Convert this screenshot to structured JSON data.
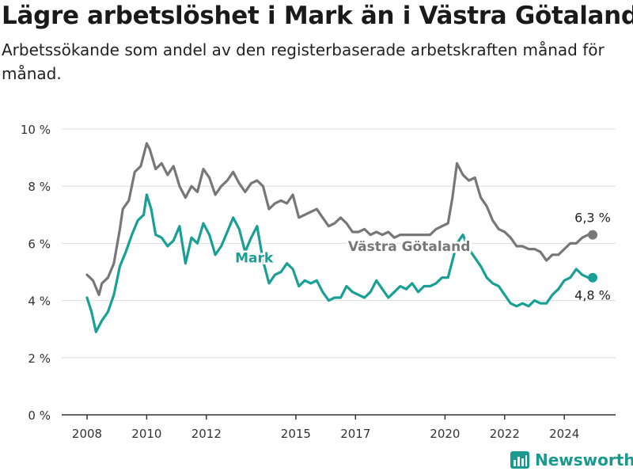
{
  "title": "Lägre arbetslöshet i Mark än i Västra Götaland",
  "subtitle": "Arbetssökande som andel av den registerbaserade arbetskraften månad för månad.",
  "brand": "Newsworthy",
  "colors": {
    "mark": "#18a096",
    "vastra": "#777777",
    "grid": "#dddddd",
    "axis": "#333333"
  },
  "chart_data": {
    "type": "line",
    "ylim": [
      0,
      10
    ],
    "xlim": [
      2008,
      2025.6
    ],
    "y_ticks": [
      0,
      2,
      4,
      6,
      8,
      10
    ],
    "y_tick_labels": [
      "0 %",
      "2 %",
      "4 %",
      "6 %",
      "8 %",
      "10 %"
    ],
    "x_ticks": [
      2008,
      2010,
      2012,
      2015,
      2017,
      2020,
      2022,
      2024
    ],
    "x_tick_labels": [
      "2008",
      "2010",
      "2012",
      "2015",
      "2017",
      "2020",
      "2022",
      "2024"
    ],
    "grid": true,
    "series": [
      {
        "name": "Västra Götaland",
        "color": "#777777",
        "end_label": "6,3 %",
        "x": [
          2008.0,
          2008.2,
          2008.4,
          2008.5,
          2008.7,
          2008.9,
          2009.1,
          2009.2,
          2009.4,
          2009.6,
          2009.8,
          2010.0,
          2010.1,
          2010.3,
          2010.5,
          2010.7,
          2010.9,
          2011.1,
          2011.3,
          2011.5,
          2011.7,
          2011.9,
          2012.1,
          2012.3,
          2012.5,
          2012.7,
          2012.9,
          2013.1,
          2013.3,
          2013.5,
          2013.7,
          2013.9,
          2014.1,
          2014.3,
          2014.5,
          2014.7,
          2014.9,
          2015.1,
          2015.3,
          2015.5,
          2015.7,
          2015.9,
          2016.1,
          2016.3,
          2016.5,
          2016.7,
          2016.9,
          2017.1,
          2017.3,
          2017.5,
          2017.7,
          2017.9,
          2018.1,
          2018.3,
          2018.5,
          2018.7,
          2018.9,
          2019.1,
          2019.3,
          2019.5,
          2019.7,
          2019.9,
          2020.1,
          2020.25,
          2020.4,
          2020.6,
          2020.8,
          2021.0,
          2021.2,
          2021.4,
          2021.6,
          2021.8,
          2022.0,
          2022.2,
          2022.4,
          2022.6,
          2022.8,
          2023.0,
          2023.2,
          2023.4,
          2023.6,
          2023.8,
          2024.0,
          2024.2,
          2024.4,
          2024.6,
          2024.8,
          2024.95
        ],
        "y": [
          4.9,
          4.7,
          4.2,
          4.6,
          4.8,
          5.3,
          6.5,
          7.2,
          7.5,
          8.5,
          8.7,
          9.5,
          9.3,
          8.6,
          8.8,
          8.4,
          8.7,
          8.0,
          7.6,
          8.0,
          7.8,
          8.6,
          8.3,
          7.7,
          8.0,
          8.2,
          8.5,
          8.1,
          7.8,
          8.1,
          8.2,
          8.0,
          7.2,
          7.4,
          7.5,
          7.4,
          7.7,
          6.9,
          7.0,
          7.1,
          7.2,
          6.9,
          6.6,
          6.7,
          6.9,
          6.7,
          6.4,
          6.4,
          6.5,
          6.3,
          6.4,
          6.3,
          6.4,
          6.2,
          6.3,
          6.3,
          6.3,
          6.3,
          6.3,
          6.3,
          6.5,
          6.6,
          6.7,
          7.6,
          8.8,
          8.4,
          8.2,
          8.3,
          7.6,
          7.3,
          6.8,
          6.5,
          6.4,
          6.2,
          5.9,
          5.9,
          5.8,
          5.8,
          5.7,
          5.4,
          5.6,
          5.6,
          5.8,
          6.0,
          6.0,
          6.2,
          6.3,
          6.3
        ]
      },
      {
        "name": "Mark",
        "color": "#18a096",
        "end_label": "4,8 %",
        "x": [
          2008.0,
          2008.15,
          2008.3,
          2008.5,
          2008.7,
          2008.9,
          2009.1,
          2009.3,
          2009.5,
          2009.7,
          2009.9,
          2010.0,
          2010.15,
          2010.3,
          2010.5,
          2010.7,
          2010.9,
          2011.1,
          2011.3,
          2011.5,
          2011.7,
          2011.9,
          2012.1,
          2012.3,
          2012.5,
          2012.7,
          2012.9,
          2013.1,
          2013.3,
          2013.5,
          2013.7,
          2013.9,
          2014.1,
          2014.3,
          2014.5,
          2014.7,
          2014.9,
          2015.1,
          2015.3,
          2015.5,
          2015.7,
          2015.9,
          2016.1,
          2016.3,
          2016.5,
          2016.7,
          2016.9,
          2017.1,
          2017.3,
          2017.5,
          2017.7,
          2017.9,
          2018.1,
          2018.3,
          2018.5,
          2018.7,
          2018.9,
          2019.1,
          2019.3,
          2019.5,
          2019.7,
          2019.9,
          2020.1,
          2020.25,
          2020.4,
          2020.6,
          2020.8,
          2021.0,
          2021.2,
          2021.4,
          2021.6,
          2021.8,
          2022.0,
          2022.2,
          2022.4,
          2022.6,
          2022.8,
          2023.0,
          2023.2,
          2023.4,
          2023.6,
          2023.8,
          2024.0,
          2024.2,
          2024.4,
          2024.6,
          2024.8,
          2024.95
        ],
        "y": [
          4.1,
          3.6,
          2.9,
          3.3,
          3.6,
          4.2,
          5.2,
          5.7,
          6.3,
          6.8,
          7.0,
          7.7,
          7.2,
          6.3,
          6.2,
          5.9,
          6.1,
          6.6,
          5.3,
          6.2,
          6.0,
          6.7,
          6.3,
          5.6,
          5.9,
          6.4,
          6.9,
          6.5,
          5.7,
          6.2,
          6.6,
          5.4,
          4.6,
          4.9,
          5.0,
          5.3,
          5.1,
          4.5,
          4.7,
          4.6,
          4.7,
          4.3,
          4.0,
          4.1,
          4.1,
          4.5,
          4.3,
          4.2,
          4.1,
          4.3,
          4.7,
          4.4,
          4.1,
          4.3,
          4.5,
          4.4,
          4.6,
          4.3,
          4.5,
          4.5,
          4.6,
          4.8,
          4.8,
          5.4,
          6.0,
          6.3,
          5.8,
          5.5,
          5.2,
          4.8,
          4.6,
          4.5,
          4.2,
          3.9,
          3.8,
          3.9,
          3.8,
          4.0,
          3.9,
          3.9,
          4.2,
          4.4,
          4.7,
          4.8,
          5.1,
          4.9,
          4.8,
          4.8
        ]
      }
    ],
    "annotations": [
      {
        "text": "Mark",
        "series": "Mark",
        "x": 2013.6,
        "y": 5.5
      },
      {
        "text": "Västra Götaland",
        "series": "Västra Götaland",
        "x": 2018.8,
        "y": 5.9
      }
    ]
  }
}
